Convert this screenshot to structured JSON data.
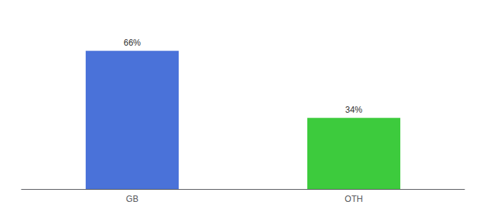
{
  "chart_data": {
    "type": "bar",
    "categories": [
      "GB",
      "OTH"
    ],
    "values": [
      66,
      34
    ],
    "value_labels": [
      "66%",
      "34%"
    ],
    "colors": [
      "#4a72d9",
      "#3dcb3d"
    ],
    "ylim": [
      0,
      80
    ],
    "grid": false,
    "tick_labels": "x"
  }
}
